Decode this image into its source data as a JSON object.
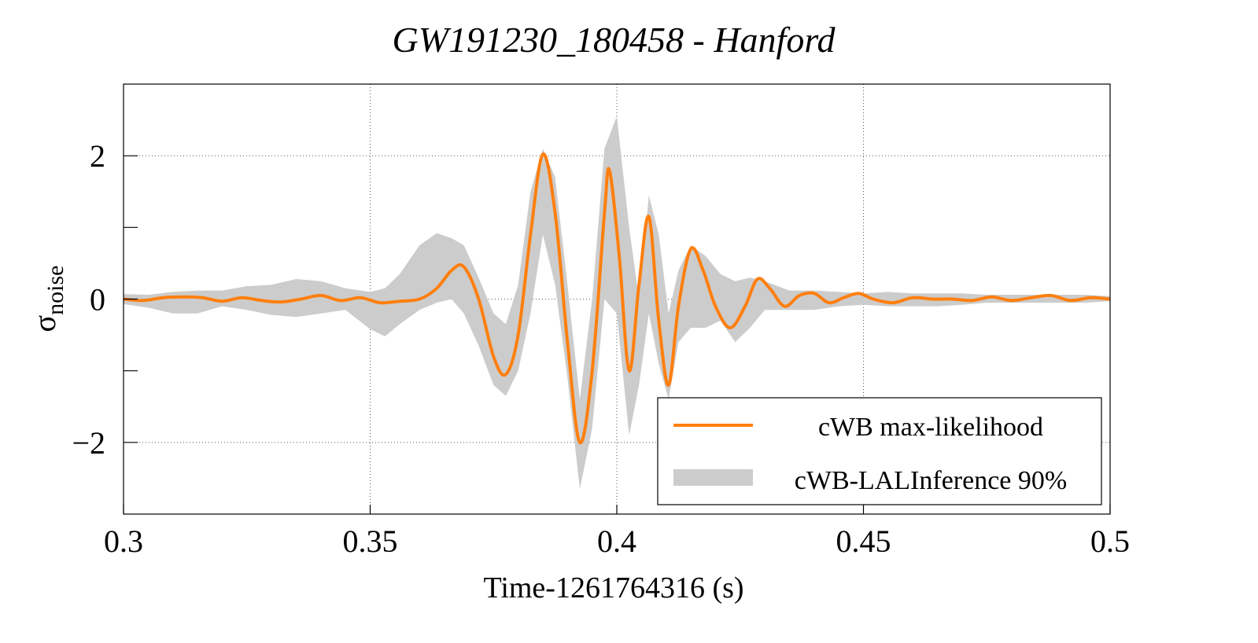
{
  "chart_data": {
    "type": "line",
    "title": "GW191230_180458 - Hanford",
    "xlabel": "Time-1261764316 (s)",
    "ylabel_main": "σ",
    "ylabel_sub": "noise",
    "xlim": [
      0.3,
      0.5
    ],
    "ylim": [
      -3,
      3
    ],
    "x_ticks": [
      0.3,
      0.35,
      0.4,
      0.45,
      0.5
    ],
    "x_tick_labels": [
      "0.3",
      "0.35",
      "0.4",
      "0.45",
      "0.5"
    ],
    "y_ticks": [
      -2,
      0,
      2
    ],
    "y_tick_labels": [
      "−2",
      "0",
      "2"
    ],
    "y_minor_ticks": [
      -1,
      1
    ],
    "grid": true,
    "legend_position": "bottom-right",
    "colors": {
      "line": "#ff7f0e",
      "band": "#cccccc",
      "grid": "#555555"
    },
    "series": [
      {
        "name": "cWB max-likelihood",
        "kind": "line",
        "x": [
          0.3,
          0.304,
          0.308,
          0.312,
          0.316,
          0.32,
          0.324,
          0.328,
          0.332,
          0.336,
          0.34,
          0.344,
          0.348,
          0.352,
          0.356,
          0.36,
          0.3635,
          0.3665,
          0.369,
          0.372,
          0.375,
          0.3775,
          0.38,
          0.3825,
          0.385,
          0.3875,
          0.39,
          0.3925,
          0.395,
          0.3975,
          0.3985,
          0.4005,
          0.4025,
          0.4045,
          0.4065,
          0.4085,
          0.4105,
          0.4125,
          0.415,
          0.4175,
          0.42,
          0.423,
          0.426,
          0.4285,
          0.431,
          0.434,
          0.437,
          0.44,
          0.443,
          0.446,
          0.449,
          0.452,
          0.456,
          0.46,
          0.464,
          0.468,
          0.472,
          0.476,
          0.48,
          0.484,
          0.488,
          0.492,
          0.496,
          0.5
        ],
        "y": [
          0.0,
          -0.02,
          0.02,
          0.03,
          0.02,
          -0.03,
          0.02,
          -0.02,
          -0.04,
          0.0,
          0.05,
          -0.02,
          0.02,
          -0.05,
          -0.03,
          0.0,
          0.15,
          0.4,
          0.45,
          0.0,
          -0.8,
          -1.05,
          -0.5,
          0.9,
          2.02,
          1.2,
          -0.6,
          -2.0,
          -1.0,
          1.2,
          1.8,
          0.6,
          -1.0,
          0.2,
          1.15,
          -0.3,
          -1.2,
          -0.1,
          0.7,
          0.4,
          -0.1,
          -0.4,
          -0.1,
          0.28,
          0.15,
          -0.1,
          0.05,
          0.08,
          -0.05,
          0.02,
          0.08,
          0.0,
          -0.05,
          0.02,
          0.0,
          0.0,
          -0.02,
          0.03,
          -0.02,
          0.02,
          0.05,
          -0.02,
          0.02,
          0.0
        ]
      },
      {
        "name": "cWB-LALInference 90%",
        "kind": "band",
        "x": [
          0.3,
          0.305,
          0.31,
          0.315,
          0.32,
          0.325,
          0.33,
          0.335,
          0.34,
          0.345,
          0.35,
          0.353,
          0.356,
          0.36,
          0.3635,
          0.3665,
          0.369,
          0.372,
          0.375,
          0.3775,
          0.38,
          0.3825,
          0.385,
          0.3875,
          0.39,
          0.3925,
          0.395,
          0.3975,
          0.4,
          0.4025,
          0.4045,
          0.4065,
          0.4085,
          0.4105,
          0.4125,
          0.415,
          0.418,
          0.421,
          0.424,
          0.427,
          0.43,
          0.435,
          0.44,
          0.445,
          0.45,
          0.455,
          0.46,
          0.465,
          0.47,
          0.475,
          0.48,
          0.485,
          0.49,
          0.495,
          0.5
        ],
        "lower": [
          -0.07,
          -0.12,
          -0.2,
          -0.2,
          -0.1,
          -0.15,
          -0.22,
          -0.25,
          -0.2,
          -0.15,
          -0.42,
          -0.52,
          -0.35,
          -0.15,
          -0.05,
          0.0,
          -0.2,
          -0.65,
          -1.2,
          -1.35,
          -1.0,
          -0.2,
          0.9,
          0.2,
          -1.1,
          -2.65,
          -1.8,
          0.0,
          -0.2,
          -1.9,
          -1.2,
          -0.2,
          -0.9,
          -1.4,
          -0.6,
          -0.4,
          -0.4,
          -0.3,
          -0.6,
          -0.4,
          -0.15,
          -0.15,
          -0.15,
          -0.1,
          -0.08,
          -0.1,
          -0.1,
          -0.1,
          -0.08,
          -0.05,
          -0.05,
          -0.05,
          -0.05,
          -0.05,
          -0.03
        ],
        "upper": [
          0.07,
          0.06,
          0.1,
          0.12,
          0.12,
          0.18,
          0.2,
          0.28,
          0.25,
          0.15,
          0.1,
          0.15,
          0.35,
          0.75,
          0.92,
          0.85,
          0.75,
          0.3,
          -0.2,
          -0.35,
          0.2,
          1.5,
          2.1,
          1.7,
          0.2,
          -1.4,
          0.0,
          2.1,
          2.55,
          1.0,
          0.0,
          1.45,
          0.9,
          -0.2,
          0.4,
          0.75,
          0.6,
          0.35,
          0.25,
          0.3,
          0.25,
          0.12,
          0.12,
          0.1,
          0.08,
          0.1,
          0.08,
          0.08,
          0.08,
          0.06,
          0.06,
          0.06,
          0.06,
          0.06,
          0.04
        ]
      }
    ]
  }
}
